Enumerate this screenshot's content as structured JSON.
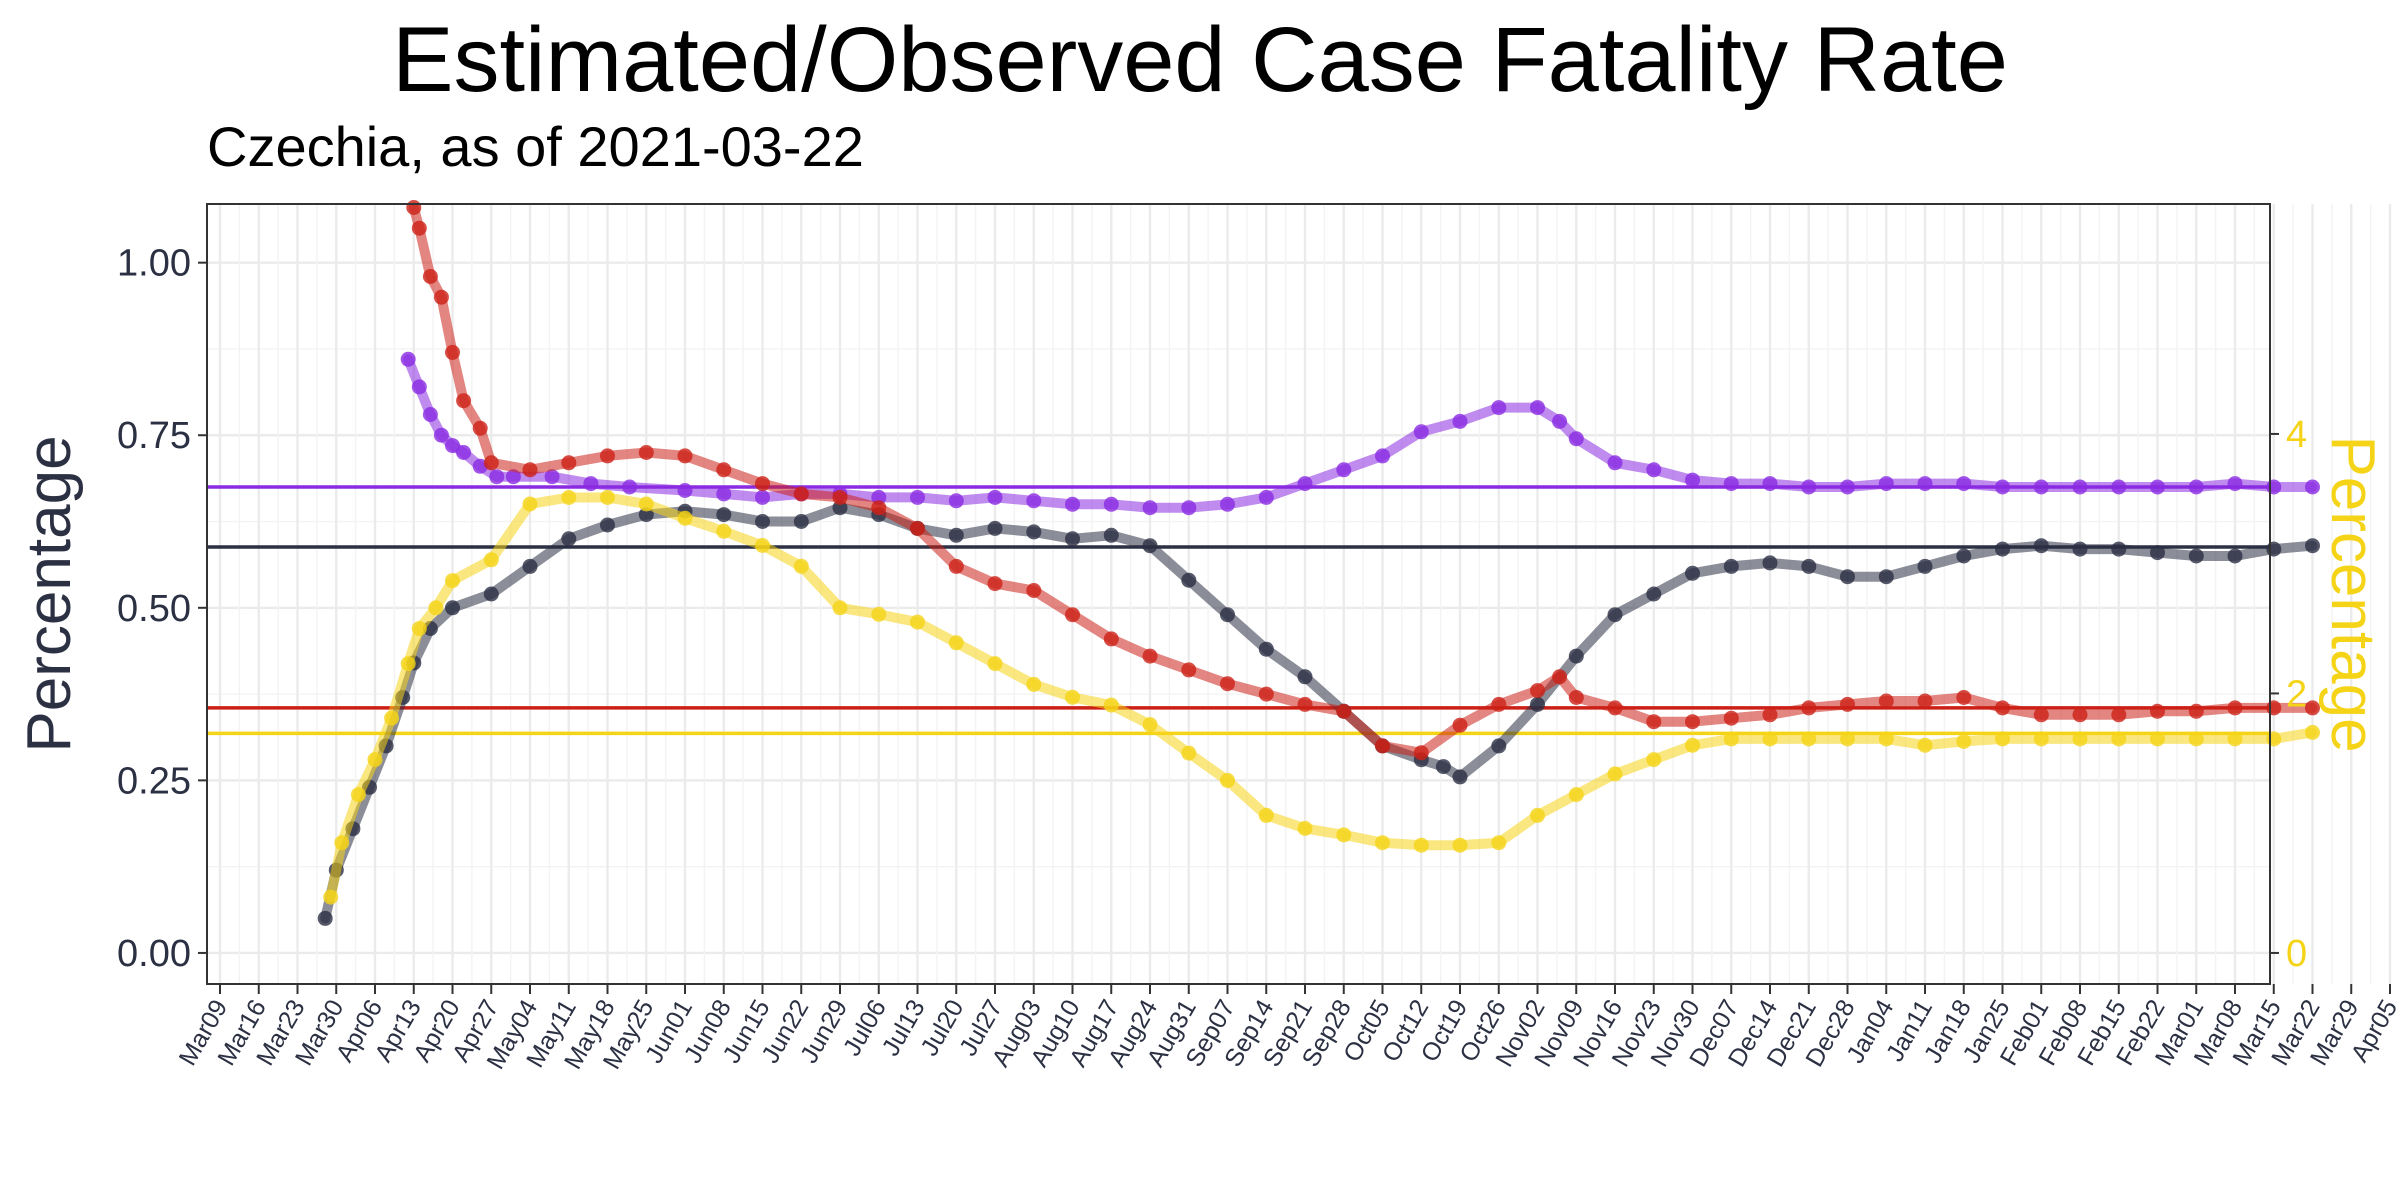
{
  "chart_data": {
    "type": "line",
    "title": "Estimated/Observed Case Fatality Rate",
    "subtitle": "Czechia, as of 2021-03-22",
    "ylabel": "Percentage",
    "ylabel_right": "Percentage",
    "ylim": [
      -0.045,
      1.085
    ],
    "y_ticks": [
      0.0,
      0.25,
      0.5,
      0.75,
      1.0
    ],
    "y_tick_labels": [
      "0.00",
      "0.25",
      "0.50",
      "0.75",
      "1.00"
    ],
    "y2_ticks": [
      0,
      2,
      4
    ],
    "y2_tick_labels": [
      "0",
      "2",
      "4"
    ],
    "y2_scale": 5.32,
    "x_start": "2020-03-09",
    "x_ticks": [
      "Mar09",
      "Mar16",
      "Mar23",
      "Mar30",
      "Apr06",
      "Apr13",
      "Apr20",
      "Apr27",
      "May04",
      "May11",
      "May18",
      "May25",
      "Jun01",
      "Jun08",
      "Jun15",
      "Jun22",
      "Jun29",
      "Jul06",
      "Jul13",
      "Jul20",
      "Jul27",
      "Aug03",
      "Aug10",
      "Aug17",
      "Aug24",
      "Aug31",
      "Sep07",
      "Sep14",
      "Sep21",
      "Sep28",
      "Oct05",
      "Oct12",
      "Oct19",
      "Oct26",
      "Nov02",
      "Nov09",
      "Nov16",
      "Nov23",
      "Nov30",
      "Dec07",
      "Dec14",
      "Dec21",
      "Dec28",
      "Jan04",
      "Jan11",
      "Jan18",
      "Jan25",
      "Feb01",
      "Feb08",
      "Feb15",
      "Feb22",
      "Mar01",
      "Mar08",
      "Mar15",
      "Mar22",
      "Mar29",
      "Apr05"
    ],
    "grid": true,
    "hlines": [
      {
        "y": 0.675,
        "color": "#8a2be2"
      },
      {
        "y": 0.588,
        "color": "#2b3043"
      },
      {
        "y": 0.355,
        "color": "#cc2017"
      },
      {
        "y": 0.318,
        "color": "#f5d417"
      }
    ],
    "series": [
      {
        "color": "#8a2be2",
        "axis": "left",
        "x": [
          "2020-04-12",
          "2020-04-14",
          "2020-04-16",
          "2020-04-18",
          "2020-04-20",
          "2020-04-22",
          "2020-04-25",
          "2020-04-28",
          "2020-05-01",
          "2020-05-08",
          "2020-05-15",
          "2020-05-22",
          "2020-06-01",
          "2020-06-08",
          "2020-06-15",
          "2020-06-22",
          "2020-06-29",
          "2020-07-06",
          "2020-07-13",
          "2020-07-20",
          "2020-07-27",
          "2020-08-03",
          "2020-08-10",
          "2020-08-17",
          "2020-08-24",
          "2020-08-31",
          "2020-09-07",
          "2020-09-14",
          "2020-09-21",
          "2020-09-28",
          "2020-10-05",
          "2020-10-12",
          "2020-10-19",
          "2020-10-26",
          "2020-11-02",
          "2020-11-06",
          "2020-11-09",
          "2020-11-16",
          "2020-11-23",
          "2020-11-30",
          "2020-12-07",
          "2020-12-14",
          "2020-12-21",
          "2020-12-28",
          "2021-01-04",
          "2021-01-11",
          "2021-01-18",
          "2021-01-25",
          "2021-02-01",
          "2021-02-08",
          "2021-02-15",
          "2021-02-22",
          "2021-03-01",
          "2021-03-08",
          "2021-03-15",
          "2021-03-22"
        ],
        "y": [
          0.86,
          0.82,
          0.78,
          0.75,
          0.735,
          0.725,
          0.705,
          0.69,
          0.69,
          0.69,
          0.68,
          0.675,
          0.67,
          0.665,
          0.66,
          0.665,
          0.665,
          0.66,
          0.66,
          0.655,
          0.66,
          0.655,
          0.65,
          0.65,
          0.645,
          0.645,
          0.65,
          0.66,
          0.68,
          0.7,
          0.72,
          0.755,
          0.77,
          0.79,
          0.79,
          0.77,
          0.745,
          0.71,
          0.7,
          0.685,
          0.68,
          0.68,
          0.675,
          0.675,
          0.68,
          0.68,
          0.68,
          0.675,
          0.675,
          0.675,
          0.675,
          0.675,
          0.675,
          0.68,
          0.675,
          0.675
        ]
      },
      {
        "color": "#2b3043",
        "axis": "left",
        "x": [
          "2020-03-28",
          "2020-03-30",
          "2020-04-02",
          "2020-04-05",
          "2020-04-08",
          "2020-04-11",
          "2020-04-13",
          "2020-04-16",
          "2020-04-20",
          "2020-04-27",
          "2020-05-04",
          "2020-05-11",
          "2020-05-18",
          "2020-05-25",
          "2020-06-01",
          "2020-06-08",
          "2020-06-15",
          "2020-06-22",
          "2020-06-29",
          "2020-07-06",
          "2020-07-13",
          "2020-07-20",
          "2020-07-27",
          "2020-08-03",
          "2020-08-10",
          "2020-08-17",
          "2020-08-24",
          "2020-08-31",
          "2020-09-07",
          "2020-09-14",
          "2020-09-21",
          "2020-09-28",
          "2020-10-05",
          "2020-10-12",
          "2020-10-16",
          "2020-10-19",
          "2020-10-26",
          "2020-11-02",
          "2020-11-09",
          "2020-11-16",
          "2020-11-23",
          "2020-11-30",
          "2020-12-07",
          "2020-12-14",
          "2020-12-21",
          "2020-12-28",
          "2021-01-04",
          "2021-01-11",
          "2021-01-18",
          "2021-01-25",
          "2021-02-01",
          "2021-02-08",
          "2021-02-15",
          "2021-02-22",
          "2021-03-01",
          "2021-03-08",
          "2021-03-15",
          "2021-03-22"
        ],
        "y": [
          0.05,
          0.12,
          0.18,
          0.24,
          0.3,
          0.37,
          0.42,
          0.47,
          0.5,
          0.52,
          0.56,
          0.6,
          0.62,
          0.635,
          0.64,
          0.635,
          0.625,
          0.625,
          0.645,
          0.635,
          0.615,
          0.605,
          0.615,
          0.61,
          0.6,
          0.605,
          0.59,
          0.54,
          0.49,
          0.44,
          0.4,
          0.35,
          0.3,
          0.28,
          0.27,
          0.255,
          0.3,
          0.36,
          0.43,
          0.49,
          0.52,
          0.55,
          0.56,
          0.565,
          0.56,
          0.545,
          0.545,
          0.56,
          0.575,
          0.585,
          0.59,
          0.585,
          0.585,
          0.58,
          0.575,
          0.575,
          0.585,
          0.59
        ]
      },
      {
        "color": "#cc2017",
        "axis": "left",
        "x": [
          "2020-04-13",
          "2020-04-14",
          "2020-04-16",
          "2020-04-18",
          "2020-04-20",
          "2020-04-22",
          "2020-04-25",
          "2020-04-27",
          "2020-05-04",
          "2020-05-11",
          "2020-05-18",
          "2020-05-25",
          "2020-06-01",
          "2020-06-08",
          "2020-06-15",
          "2020-06-22",
          "2020-06-29",
          "2020-07-06",
          "2020-07-13",
          "2020-07-20",
          "2020-07-27",
          "2020-08-03",
          "2020-08-10",
          "2020-08-17",
          "2020-08-24",
          "2020-08-31",
          "2020-09-07",
          "2020-09-14",
          "2020-09-21",
          "2020-09-28",
          "2020-10-05",
          "2020-10-12",
          "2020-10-19",
          "2020-10-26",
          "2020-11-02",
          "2020-11-06",
          "2020-11-09",
          "2020-11-16",
          "2020-11-23",
          "2020-11-30",
          "2020-12-07",
          "2020-12-14",
          "2020-12-21",
          "2020-12-28",
          "2021-01-04",
          "2021-01-11",
          "2021-01-18",
          "2021-01-25",
          "2021-02-01",
          "2021-02-08",
          "2021-02-15",
          "2021-02-22",
          "2021-03-01",
          "2021-03-08",
          "2021-03-15",
          "2021-03-22"
        ],
        "y": [
          1.08,
          1.05,
          0.98,
          0.95,
          0.87,
          0.8,
          0.76,
          0.71,
          0.7,
          0.71,
          0.72,
          0.725,
          0.72,
          0.7,
          0.68,
          0.665,
          0.66,
          0.645,
          0.615,
          0.56,
          0.535,
          0.525,
          0.49,
          0.455,
          0.43,
          0.41,
          0.39,
          0.375,
          0.36,
          0.35,
          0.3,
          0.29,
          0.33,
          0.36,
          0.38,
          0.4,
          0.37,
          0.355,
          0.335,
          0.335,
          0.34,
          0.345,
          0.355,
          0.36,
          0.365,
          0.365,
          0.37,
          0.355,
          0.345,
          0.345,
          0.345,
          0.35,
          0.35,
          0.355,
          0.355,
          0.355
        ]
      },
      {
        "color": "#f5d417",
        "axis": "right",
        "x": [
          "2020-03-29",
          "2020-03-31",
          "2020-04-03",
          "2020-04-06",
          "2020-04-09",
          "2020-04-12",
          "2020-04-14",
          "2020-04-17",
          "2020-04-20",
          "2020-04-27",
          "2020-05-04",
          "2020-05-11",
          "2020-05-18",
          "2020-05-25",
          "2020-06-01",
          "2020-06-08",
          "2020-06-15",
          "2020-06-22",
          "2020-06-29",
          "2020-07-06",
          "2020-07-13",
          "2020-07-20",
          "2020-07-27",
          "2020-08-03",
          "2020-08-10",
          "2020-08-17",
          "2020-08-24",
          "2020-08-31",
          "2020-09-07",
          "2020-09-14",
          "2020-09-21",
          "2020-09-28",
          "2020-10-05",
          "2020-10-12",
          "2020-10-19",
          "2020-10-26",
          "2020-11-02",
          "2020-11-09",
          "2020-11-16",
          "2020-11-23",
          "2020-11-30",
          "2020-12-07",
          "2020-12-14",
          "2020-12-21",
          "2020-12-28",
          "2021-01-04",
          "2021-01-11",
          "2021-01-18",
          "2021-01-25",
          "2021-02-01",
          "2021-02-08",
          "2021-02-15",
          "2021-02-22",
          "2021-03-01",
          "2021-03-08",
          "2021-03-15",
          "2021-03-22"
        ],
        "y": [
          0.43,
          0.85,
          1.22,
          1.49,
          1.81,
          2.23,
          2.5,
          2.66,
          2.87,
          3.03,
          3.46,
          3.51,
          3.51,
          3.46,
          3.35,
          3.25,
          3.14,
          2.98,
          2.66,
          2.61,
          2.55,
          2.39,
          2.23,
          2.07,
          1.97,
          1.91,
          1.76,
          1.54,
          1.33,
          1.06,
          0.96,
          0.91,
          0.85,
          0.83,
          0.83,
          0.85,
          1.06,
          1.22,
          1.38,
          1.49,
          1.6,
          1.65,
          1.65,
          1.65,
          1.65,
          1.65,
          1.6,
          1.63,
          1.65,
          1.65,
          1.65,
          1.65,
          1.65,
          1.65,
          1.65,
          1.65,
          1.7
        ]
      }
    ]
  }
}
